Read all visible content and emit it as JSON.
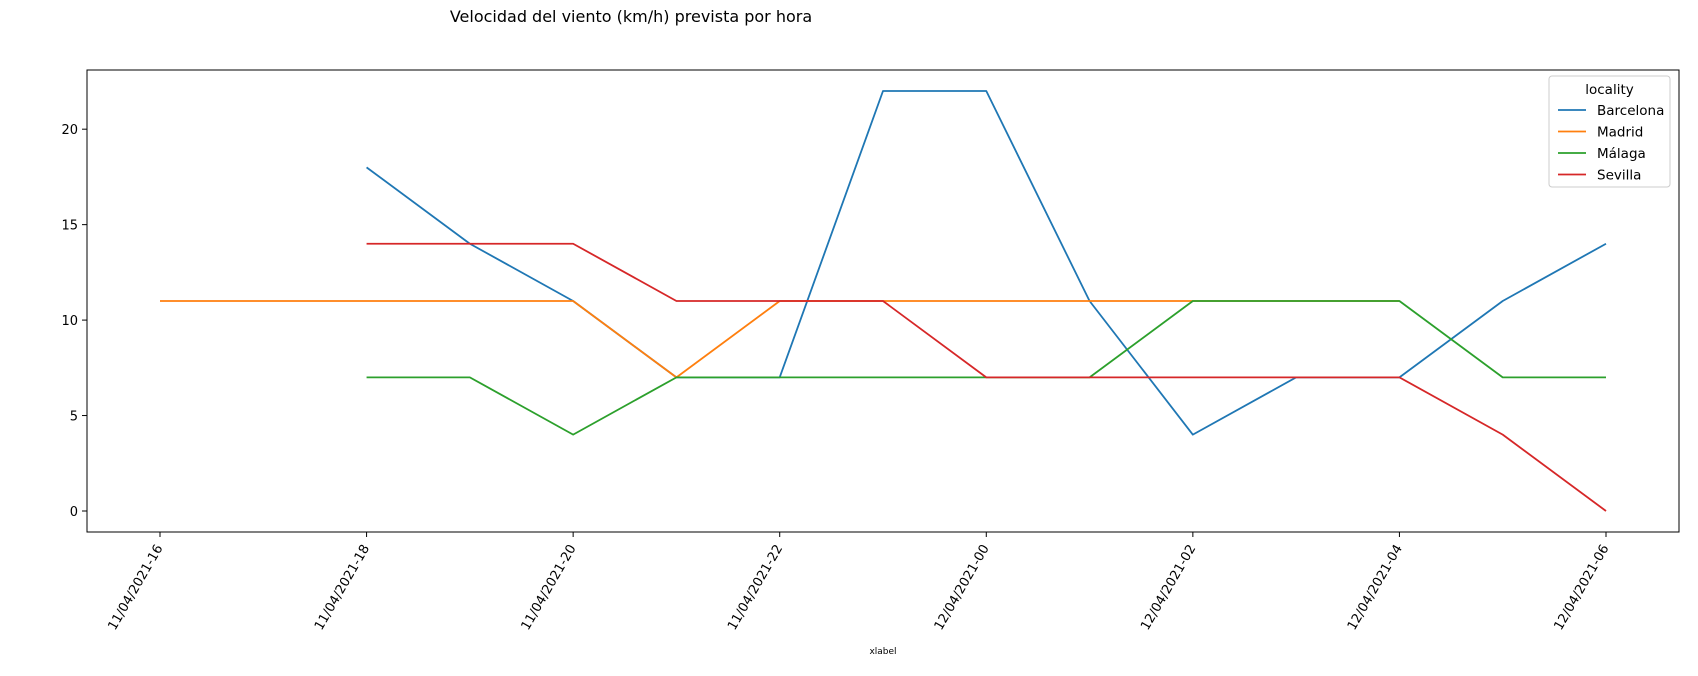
{
  "chart_data": {
    "type": "line",
    "title": "Velocidad del viento (km/h) prevista por hora",
    "xlabel": "xlabel",
    "ylabel": "",
    "x": [
      "11/04/2021-16",
      "11/04/2021-17",
      "11/04/2021-18",
      "11/04/2021-19",
      "11/04/2021-20",
      "11/04/2021-21",
      "11/04/2021-22",
      "11/04/2021-23",
      "12/04/2021-00",
      "12/04/2021-01",
      "12/04/2021-02",
      "12/04/2021-03",
      "12/04/2021-04",
      "12/04/2021-05",
      "12/04/2021-06"
    ],
    "xticks": [
      "11/04/2021-16",
      "11/04/2021-18",
      "11/04/2021-20",
      "11/04/2021-22",
      "12/04/2021-00",
      "12/04/2021-02",
      "12/04/2021-04",
      "12/04/2021-06"
    ],
    "ylim": [
      -1.1,
      23.1
    ],
    "yticks": [
      0,
      5,
      10,
      15,
      20
    ],
    "grid": false,
    "legend": {
      "title": "locality",
      "placement": "top-right"
    },
    "series": [
      {
        "name": "Barcelona",
        "color": "#1f77b4",
        "values": [
          null,
          null,
          18,
          14,
          11,
          7,
          7,
          22,
          22,
          11,
          4,
          7,
          7,
          11,
          14
        ]
      },
      {
        "name": "Madrid",
        "color": "#ff7f0e",
        "values": [
          11,
          11,
          11,
          11,
          11,
          7,
          11,
          11,
          11,
          11,
          11,
          11,
          11,
          null,
          null
        ]
      },
      {
        "name": "Málaga",
        "color": "#2ca02c",
        "values": [
          null,
          null,
          7,
          7,
          4,
          7,
          7,
          7,
          7,
          7,
          11,
          11,
          11,
          7,
          7
        ]
      },
      {
        "name": "Sevilla",
        "color": "#d62728",
        "values": [
          null,
          null,
          14,
          14,
          14,
          11,
          11,
          11,
          7,
          7,
          7,
          7,
          7,
          4,
          0
        ]
      }
    ]
  }
}
